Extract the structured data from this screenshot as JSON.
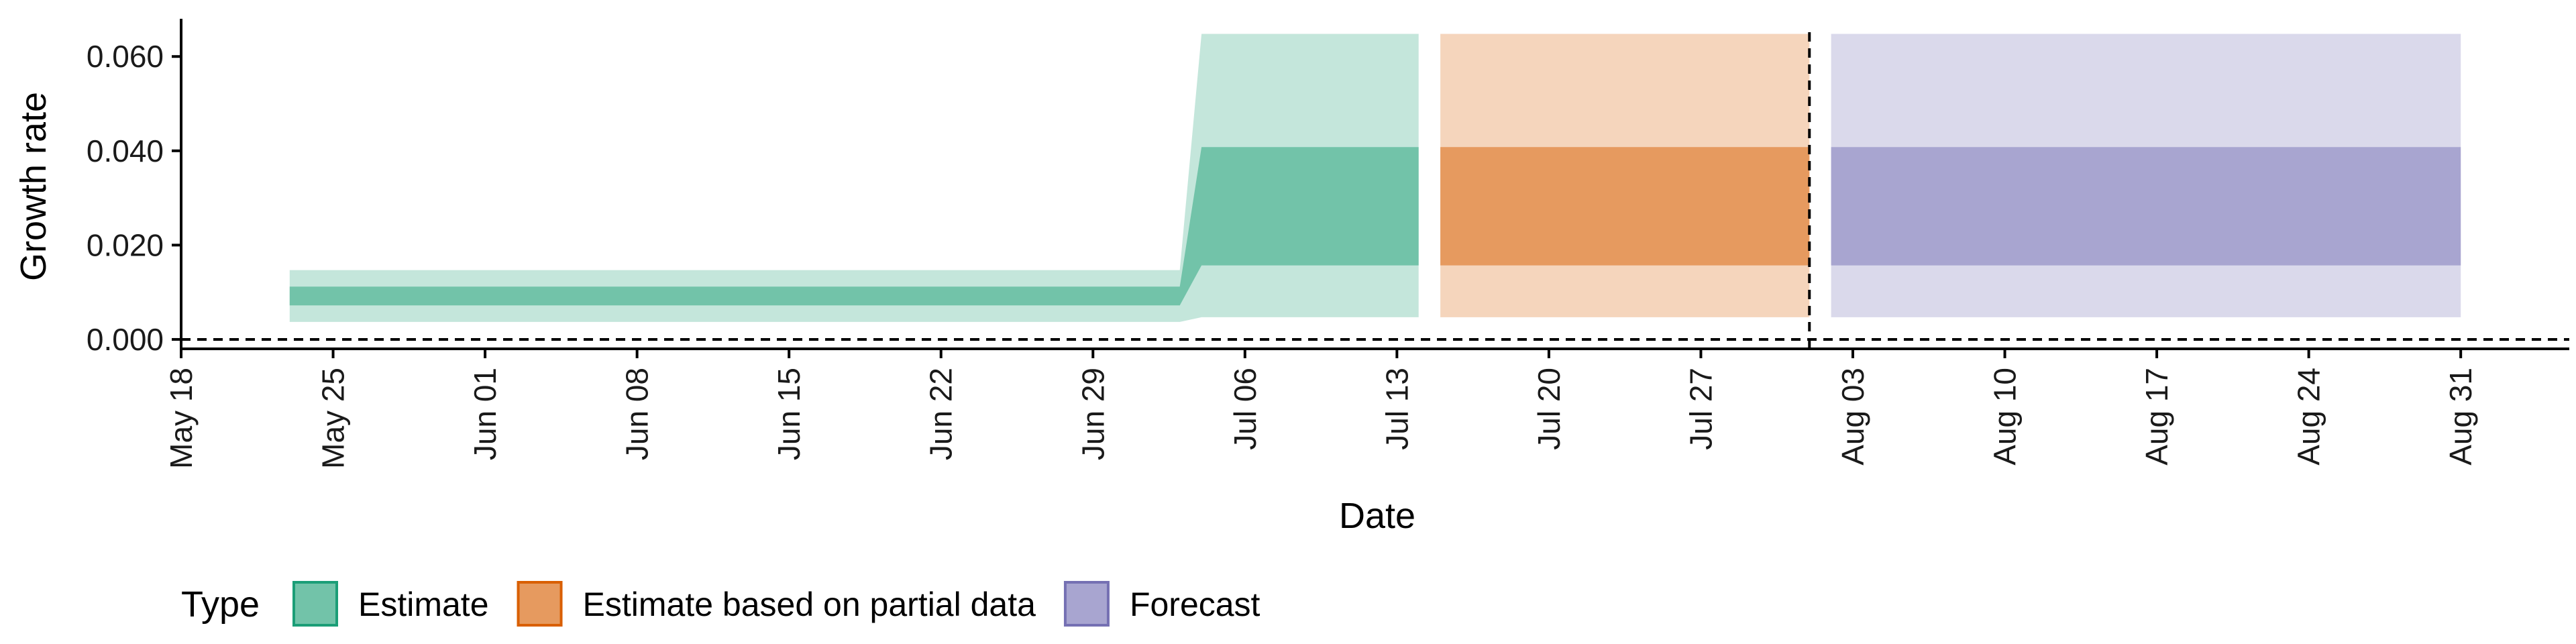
{
  "chart_data": {
    "type": "area",
    "xlabel": "Date",
    "ylabel": "Growth rate",
    "x_ticks": [
      "May 18",
      "May 25",
      "Jun 01",
      "Jun 08",
      "Jun 15",
      "Jun 22",
      "Jun 29",
      "Jul 06",
      "Jul 13",
      "Jul 20",
      "Jul 27",
      "Aug 03",
      "Aug 10",
      "Aug 17",
      "Aug 24",
      "Aug 31"
    ],
    "y_ticks": [
      "0.000",
      "0.020",
      "0.040",
      "0.060"
    ],
    "ylim": [
      -0.002,
      0.068
    ],
    "xlim": [
      "2020-05-18",
      "2020-09-05"
    ],
    "grid": false,
    "legend": {
      "title": "Type",
      "position": "bottom-left",
      "entries": [
        {
          "label": "Estimate",
          "fill": "#72c3a9",
          "stroke": "#1b9e77"
        },
        {
          "label": "Estimate based on partial data",
          "fill": "#e69a5f",
          "stroke": "#d95f02"
        },
        {
          "label": "Forecast",
          "fill": "#a8a5d0",
          "stroke": "#7570b3"
        }
      ]
    },
    "reference_lines": {
      "horizontal_y": 0.0,
      "vertical_date": "2020-08-01"
    },
    "series": [
      {
        "name": "Estimate",
        "color": "#1b9e77",
        "points": [
          {
            "date": "2020-05-23",
            "lower_90": 0.0037,
            "lower_50": 0.0072,
            "upper_50": 0.0112,
            "upper_90": 0.0147
          },
          {
            "date": "2020-07-03",
            "lower_90": 0.0037,
            "lower_50": 0.0072,
            "upper_50": 0.0112,
            "upper_90": 0.0147
          },
          {
            "date": "2020-07-04",
            "lower_90": 0.0047,
            "lower_50": 0.0157,
            "upper_50": 0.0408,
            "upper_90": 0.0648
          },
          {
            "date": "2020-07-14",
            "lower_90": 0.0047,
            "lower_50": 0.0157,
            "upper_50": 0.0408,
            "upper_90": 0.0648
          }
        ]
      },
      {
        "name": "Estimate based on partial data",
        "color": "#d95f02",
        "points": [
          {
            "date": "2020-07-15",
            "lower_90": 0.0047,
            "lower_50": 0.0157,
            "upper_50": 0.0408,
            "upper_90": 0.0648
          },
          {
            "date": "2020-08-01",
            "lower_90": 0.0047,
            "lower_50": 0.0157,
            "upper_50": 0.0408,
            "upper_90": 0.0648
          }
        ]
      },
      {
        "name": "Forecast",
        "color": "#7570b3",
        "points": [
          {
            "date": "2020-08-02",
            "lower_90": 0.0047,
            "lower_50": 0.0157,
            "upper_50": 0.0408,
            "upper_90": 0.0648
          },
          {
            "date": "2020-08-31",
            "lower_90": 0.0047,
            "lower_50": 0.0157,
            "upper_50": 0.0408,
            "upper_90": 0.0648
          }
        ]
      }
    ]
  }
}
